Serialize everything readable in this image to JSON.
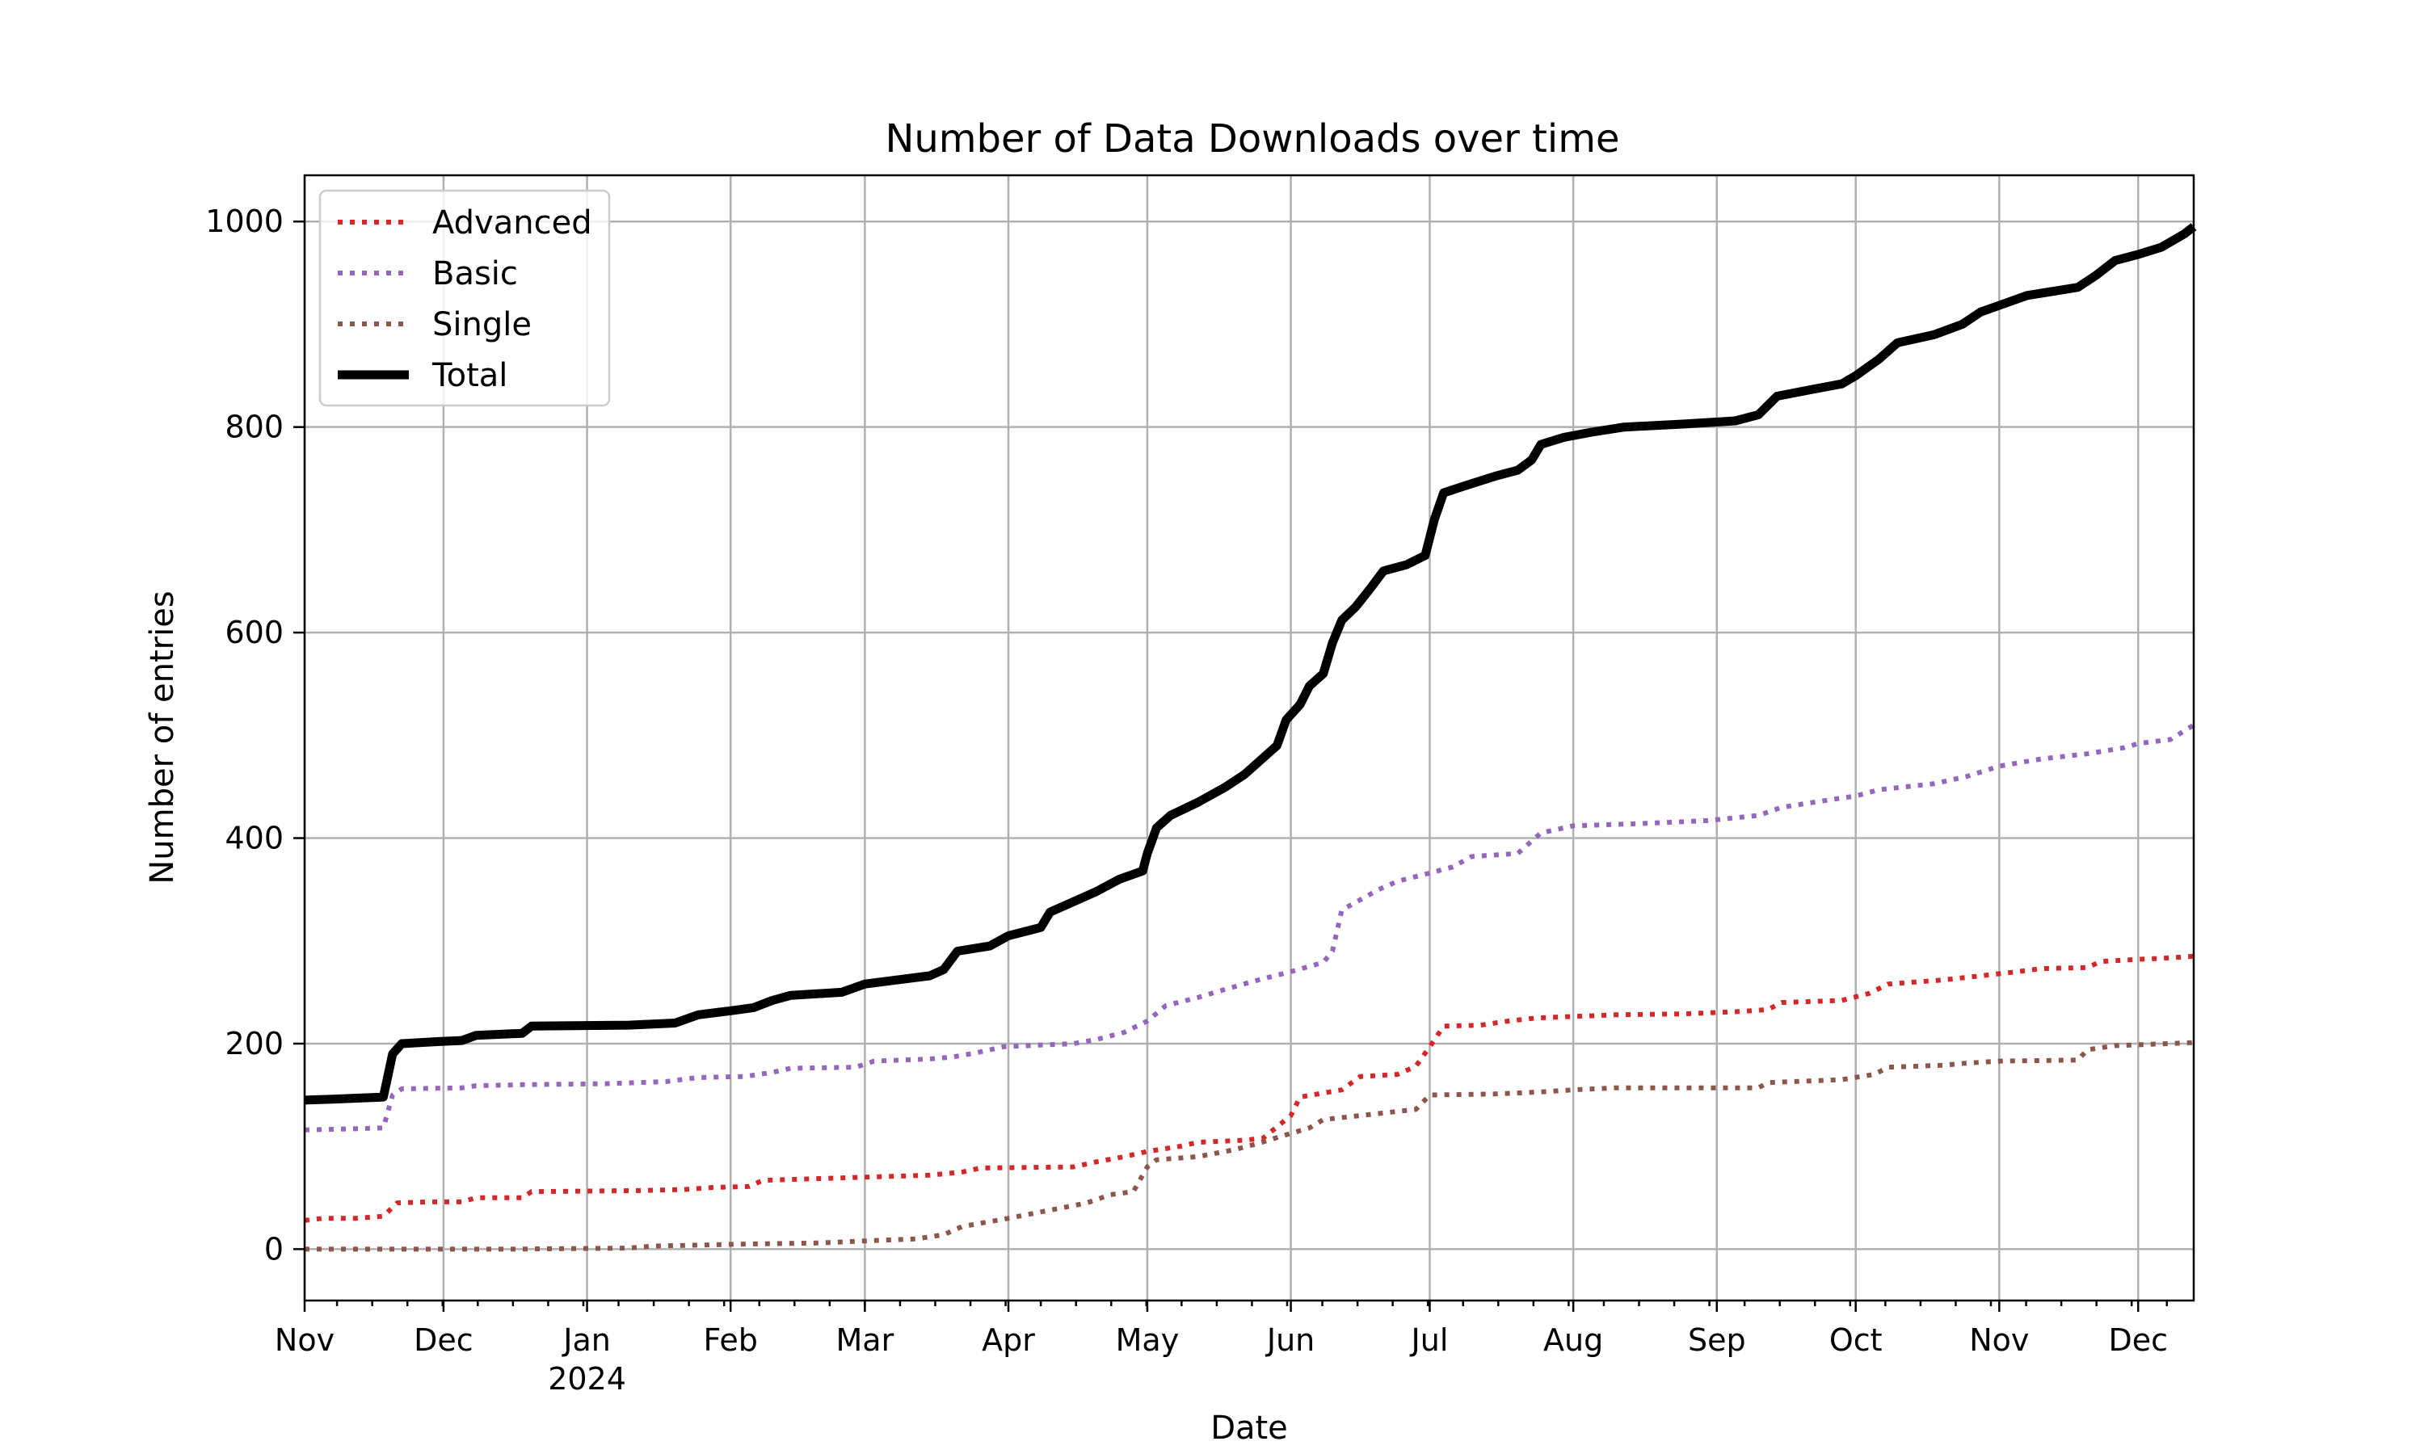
{
  "chart_data": {
    "type": "line",
    "title": "Number of Data Downloads over time",
    "xlabel": "Date",
    "ylabel": "Number of entries",
    "xlim": [
      "2023-11-01",
      "2024-12-13"
    ],
    "ylim": [
      -50,
      1045
    ],
    "grid": true,
    "legend_position": "top-left",
    "x_ticks": [
      {
        "date": "2023-11-01",
        "label": "Nov",
        "sublabel": ""
      },
      {
        "date": "2023-12-01",
        "label": "Dec",
        "sublabel": ""
      },
      {
        "date": "2024-01-01",
        "label": "Jan",
        "sublabel": "2024"
      },
      {
        "date": "2024-02-01",
        "label": "Feb",
        "sublabel": ""
      },
      {
        "date": "2024-03-01",
        "label": "Mar",
        "sublabel": ""
      },
      {
        "date": "2024-04-01",
        "label": "Apr",
        "sublabel": ""
      },
      {
        "date": "2024-05-01",
        "label": "May",
        "sublabel": ""
      },
      {
        "date": "2024-06-01",
        "label": "Jun",
        "sublabel": ""
      },
      {
        "date": "2024-07-01",
        "label": "Jul",
        "sublabel": ""
      },
      {
        "date": "2024-08-01",
        "label": "Aug",
        "sublabel": ""
      },
      {
        "date": "2024-09-01",
        "label": "Sep",
        "sublabel": ""
      },
      {
        "date": "2024-10-01",
        "label": "Oct",
        "sublabel": ""
      },
      {
        "date": "2024-11-01",
        "label": "Nov",
        "sublabel": ""
      },
      {
        "date": "2024-12-01",
        "label": "Dec",
        "sublabel": ""
      }
    ],
    "y_ticks": [
      0,
      200,
      400,
      600,
      800,
      1000
    ],
    "series": [
      {
        "name": "Advanced",
        "color": "#d62728",
        "style": "dotted",
        "points": [
          [
            "2023-11-01",
            28
          ],
          [
            "2023-11-05",
            30
          ],
          [
            "2023-11-12",
            30
          ],
          [
            "2023-11-18",
            32
          ],
          [
            "2023-11-21",
            45
          ],
          [
            "2023-11-28",
            46
          ],
          [
            "2023-12-05",
            46
          ],
          [
            "2023-12-08",
            50
          ],
          [
            "2023-12-18",
            50
          ],
          [
            "2023-12-20",
            56
          ],
          [
            "2024-01-12",
            57
          ],
          [
            "2024-01-22",
            58
          ],
          [
            "2024-01-28",
            60
          ],
          [
            "2024-02-05",
            61
          ],
          [
            "2024-02-08",
            67
          ],
          [
            "2024-03-01",
            70
          ],
          [
            "2024-03-15",
            72
          ],
          [
            "2024-03-22",
            75
          ],
          [
            "2024-03-26",
            79
          ],
          [
            "2024-04-15",
            80
          ],
          [
            "2024-04-20",
            85
          ],
          [
            "2024-04-26",
            90
          ],
          [
            "2024-05-01",
            95
          ],
          [
            "2024-05-08",
            100
          ],
          [
            "2024-05-12",
            104
          ],
          [
            "2024-05-22",
            106
          ],
          [
            "2024-05-26",
            108
          ],
          [
            "2024-06-01",
            130
          ],
          [
            "2024-06-03",
            148
          ],
          [
            "2024-06-12",
            155
          ],
          [
            "2024-06-16",
            168
          ],
          [
            "2024-06-24",
            170
          ],
          [
            "2024-06-28",
            178
          ],
          [
            "2024-07-01",
            197
          ],
          [
            "2024-07-04",
            217
          ],
          [
            "2024-07-12",
            218
          ],
          [
            "2024-07-18",
            222
          ],
          [
            "2024-07-24",
            225
          ],
          [
            "2024-08-10",
            228
          ],
          [
            "2024-08-25",
            229
          ],
          [
            "2024-09-05",
            231
          ],
          [
            "2024-09-12",
            233
          ],
          [
            "2024-09-15",
            240
          ],
          [
            "2024-09-28",
            242
          ],
          [
            "2024-10-04",
            249
          ],
          [
            "2024-10-08",
            258
          ],
          [
            "2024-10-20",
            262
          ],
          [
            "2024-10-28",
            266
          ],
          [
            "2024-11-05",
            270
          ],
          [
            "2024-11-10",
            273
          ],
          [
            "2024-11-20",
            274
          ],
          [
            "2024-11-23",
            280
          ],
          [
            "2024-12-01",
            282
          ],
          [
            "2024-12-06",
            283
          ],
          [
            "2024-12-13",
            285
          ]
        ]
      },
      {
        "name": "Basic",
        "color": "#9467bd",
        "style": "dotted",
        "points": [
          [
            "2023-11-01",
            116
          ],
          [
            "2023-11-10",
            117
          ],
          [
            "2023-11-18",
            118
          ],
          [
            "2023-11-20",
            150
          ],
          [
            "2023-11-22",
            156
          ],
          [
            "2023-12-05",
            157
          ],
          [
            "2023-12-08",
            159
          ],
          [
            "2023-12-18",
            160
          ],
          [
            "2024-01-05",
            161
          ],
          [
            "2024-01-18",
            163
          ],
          [
            "2024-01-25",
            167
          ],
          [
            "2024-02-04",
            168
          ],
          [
            "2024-02-10",
            172
          ],
          [
            "2024-02-14",
            176
          ],
          [
            "2024-02-28",
            177
          ],
          [
            "2024-03-03",
            183
          ],
          [
            "2024-03-15",
            185
          ],
          [
            "2024-03-20",
            187
          ],
          [
            "2024-03-25",
            191
          ],
          [
            "2024-03-31",
            197
          ],
          [
            "2024-04-15",
            200
          ],
          [
            "2024-04-20",
            204
          ],
          [
            "2024-04-26",
            211
          ],
          [
            "2024-05-01",
            222
          ],
          [
            "2024-05-05",
            237
          ],
          [
            "2024-05-12",
            245
          ],
          [
            "2024-05-18",
            253
          ],
          [
            "2024-05-25",
            262
          ],
          [
            "2024-06-01",
            270
          ],
          [
            "2024-06-08",
            279
          ],
          [
            "2024-06-10",
            290
          ],
          [
            "2024-06-12",
            330
          ],
          [
            "2024-06-16",
            340
          ],
          [
            "2024-06-20",
            350
          ],
          [
            "2024-06-24",
            358
          ],
          [
            "2024-07-01",
            366
          ],
          [
            "2024-07-06",
            372
          ],
          [
            "2024-07-10",
            382
          ],
          [
            "2024-07-20",
            385
          ],
          [
            "2024-07-25",
            405
          ],
          [
            "2024-08-01",
            412
          ],
          [
            "2024-08-15",
            414
          ],
          [
            "2024-08-30",
            417
          ],
          [
            "2024-09-10",
            422
          ],
          [
            "2024-09-15",
            430
          ],
          [
            "2024-09-25",
            437
          ],
          [
            "2024-10-01",
            441
          ],
          [
            "2024-10-06",
            447
          ],
          [
            "2024-10-18",
            453
          ],
          [
            "2024-10-25",
            460
          ],
          [
            "2024-11-01",
            470
          ],
          [
            "2024-11-10",
            477
          ],
          [
            "2024-11-20",
            482
          ],
          [
            "2024-11-28",
            488
          ],
          [
            "2024-12-01",
            492
          ],
          [
            "2024-12-08",
            496
          ],
          [
            "2024-12-13",
            510
          ]
        ]
      },
      {
        "name": "Single",
        "color": "#8c564b",
        "style": "dotted",
        "points": [
          [
            "2023-11-01",
            0
          ],
          [
            "2023-12-15",
            0
          ],
          [
            "2024-01-10",
            1
          ],
          [
            "2024-01-15",
            3
          ],
          [
            "2024-02-05",
            5
          ],
          [
            "2024-02-20",
            6
          ],
          [
            "2024-03-01",
            8
          ],
          [
            "2024-03-12",
            10
          ],
          [
            "2024-03-18",
            14
          ],
          [
            "2024-03-22",
            22
          ],
          [
            "2024-04-01",
            30
          ],
          [
            "2024-04-10",
            38
          ],
          [
            "2024-04-18",
            45
          ],
          [
            "2024-04-23",
            53
          ],
          [
            "2024-04-28",
            56
          ],
          [
            "2024-05-01",
            80
          ],
          [
            "2024-05-03",
            87
          ],
          [
            "2024-05-12",
            90
          ],
          [
            "2024-05-20",
            97
          ],
          [
            "2024-05-25",
            103
          ],
          [
            "2024-05-30",
            110
          ],
          [
            "2024-06-05",
            118
          ],
          [
            "2024-06-08",
            126
          ],
          [
            "2024-06-20",
            132
          ],
          [
            "2024-06-28",
            136
          ],
          [
            "2024-07-01",
            150
          ],
          [
            "2024-07-15",
            151
          ],
          [
            "2024-07-25",
            153
          ],
          [
            "2024-08-01",
            155
          ],
          [
            "2024-08-10",
            157
          ],
          [
            "2024-08-25",
            157
          ],
          [
            "2024-09-10",
            157
          ],
          [
            "2024-09-12",
            162
          ],
          [
            "2024-09-28",
            165
          ],
          [
            "2024-10-05",
            170
          ],
          [
            "2024-10-08",
            177
          ],
          [
            "2024-10-20",
            179
          ],
          [
            "2024-10-25",
            181
          ],
          [
            "2024-11-01",
            183
          ],
          [
            "2024-11-18",
            184
          ],
          [
            "2024-11-20",
            194
          ],
          [
            "2024-11-26",
            198
          ],
          [
            "2024-12-13",
            201
          ]
        ]
      },
      {
        "name": "Total",
        "color": "#000000",
        "style": "solid",
        "points": [
          [
            "2023-11-01",
            145
          ],
          [
            "2023-11-07",
            146
          ],
          [
            "2023-11-18",
            148
          ],
          [
            "2023-11-20",
            190
          ],
          [
            "2023-11-22",
            200
          ],
          [
            "2023-11-30",
            202
          ],
          [
            "2023-12-05",
            203
          ],
          [
            "2023-12-08",
            208
          ],
          [
            "2023-12-18",
            210
          ],
          [
            "2023-12-20",
            217
          ],
          [
            "2024-01-10",
            218
          ],
          [
            "2024-01-20",
            220
          ],
          [
            "2024-01-25",
            228
          ],
          [
            "2024-02-01",
            232
          ],
          [
            "2024-02-06",
            235
          ],
          [
            "2024-02-10",
            242
          ],
          [
            "2024-02-14",
            247
          ],
          [
            "2024-02-25",
            250
          ],
          [
            "2024-03-01",
            258
          ],
          [
            "2024-03-08",
            262
          ],
          [
            "2024-03-15",
            266
          ],
          [
            "2024-03-18",
            272
          ],
          [
            "2024-03-21",
            290
          ],
          [
            "2024-03-28",
            295
          ],
          [
            "2024-04-01",
            305
          ],
          [
            "2024-04-08",
            313
          ],
          [
            "2024-04-10",
            328
          ],
          [
            "2024-04-16",
            340
          ],
          [
            "2024-04-20",
            348
          ],
          [
            "2024-04-25",
            360
          ],
          [
            "2024-04-30",
            368
          ],
          [
            "2024-05-01",
            385
          ],
          [
            "2024-05-03",
            410
          ],
          [
            "2024-05-06",
            422
          ],
          [
            "2024-05-12",
            435
          ],
          [
            "2024-05-18",
            450
          ],
          [
            "2024-05-22",
            462
          ],
          [
            "2024-05-26",
            478
          ],
          [
            "2024-05-29",
            490
          ],
          [
            "2024-05-31",
            515
          ],
          [
            "2024-06-03",
            530
          ],
          [
            "2024-06-05",
            548
          ],
          [
            "2024-06-08",
            560
          ],
          [
            "2024-06-10",
            590
          ],
          [
            "2024-06-12",
            612
          ],
          [
            "2024-06-15",
            625
          ],
          [
            "2024-06-18",
            642
          ],
          [
            "2024-06-21",
            660
          ],
          [
            "2024-06-26",
            666
          ],
          [
            "2024-06-30",
            675
          ],
          [
            "2024-07-02",
            710
          ],
          [
            "2024-07-04",
            736
          ],
          [
            "2024-07-08",
            742
          ],
          [
            "2024-07-15",
            752
          ],
          [
            "2024-07-20",
            758
          ],
          [
            "2024-07-23",
            768
          ],
          [
            "2024-07-25",
            783
          ],
          [
            "2024-07-30",
            790
          ],
          [
            "2024-08-05",
            795
          ],
          [
            "2024-08-12",
            800
          ],
          [
            "2024-08-25",
            803
          ],
          [
            "2024-09-05",
            806
          ],
          [
            "2024-09-10",
            812
          ],
          [
            "2024-09-14",
            830
          ],
          [
            "2024-09-22",
            837
          ],
          [
            "2024-09-28",
            842
          ],
          [
            "2024-10-01",
            850
          ],
          [
            "2024-10-06",
            866
          ],
          [
            "2024-10-10",
            882
          ],
          [
            "2024-10-18",
            890
          ],
          [
            "2024-10-24",
            900
          ],
          [
            "2024-10-28",
            912
          ],
          [
            "2024-11-02",
            920
          ],
          [
            "2024-11-07",
            928
          ],
          [
            "2024-11-18",
            936
          ],
          [
            "2024-11-22",
            948
          ],
          [
            "2024-11-26",
            962
          ],
          [
            "2024-12-01",
            968
          ],
          [
            "2024-12-06",
            975
          ],
          [
            "2024-12-11",
            988
          ],
          [
            "2024-12-13",
            995
          ]
        ]
      }
    ]
  }
}
